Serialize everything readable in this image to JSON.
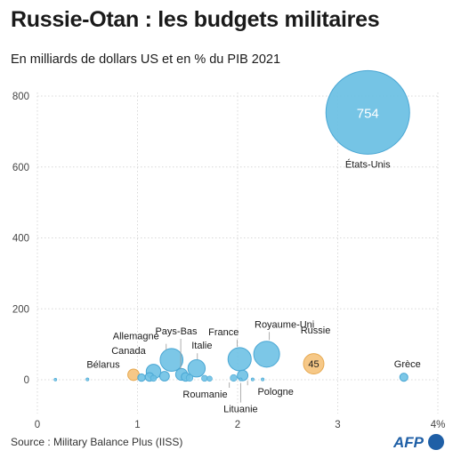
{
  "title": "Russie-Otan : les budgets militaires",
  "subtitle": "En milliards de dollars US et en % du PIB 2021",
  "source": "Source : Military Balance Plus (IISS)",
  "logo_text": "AFP",
  "colors": {
    "nato": "#6ec1e4",
    "nato_stroke": "#4aa7d4",
    "other": "#f5c27a",
    "other_stroke": "#e6a84f",
    "grid": "#d8d8d8"
  },
  "chart_data": {
    "type": "bubble",
    "xlim": [
      0,
      4
    ],
    "ylim": [
      -75,
      850
    ],
    "x_ticks": [
      0,
      1,
      2,
      3,
      4
    ],
    "x_tick_labels": [
      "0",
      "1",
      "2",
      "3",
      "4%"
    ],
    "y_ticks": [
      0,
      200,
      400,
      600,
      800
    ],
    "y_tick_labels": [
      "0",
      "200",
      "400",
      "600",
      "800"
    ],
    "points": [
      {
        "x": 3.3,
        "y": 754,
        "label": "États-Unis",
        "value_label": "754",
        "group": "nato"
      },
      {
        "x": 2.29,
        "y": 72,
        "label": "Royaume-Uni",
        "group": "nato"
      },
      {
        "x": 2.02,
        "y": 58,
        "label": "France",
        "group": "nato"
      },
      {
        "x": 1.34,
        "y": 56,
        "label": "Allemagne",
        "group": "nato"
      },
      {
        "x": 1.59,
        "y": 32,
        "label": "Italie",
        "group": "nato"
      },
      {
        "x": 1.16,
        "y": 23,
        "label": "Canada",
        "group": "nato"
      },
      {
        "x": 2.05,
        "y": 12,
        "label": "Pologne",
        "group": "nato"
      },
      {
        "x": 1.44,
        "y": 15,
        "label": "Pays-Bas",
        "group": "nato"
      },
      {
        "x": 3.66,
        "y": 7,
        "label": "Grèce",
        "group": "nato"
      },
      {
        "x": 2.76,
        "y": 45,
        "label": "Russie",
        "value_label": "45",
        "group": "other"
      },
      {
        "x": 0.96,
        "y": 14,
        "label": "Bélarus",
        "group": "other"
      },
      {
        "x": 1.96,
        "y": 5,
        "label": "Roumanie",
        "group": "nato"
      },
      {
        "x": 2.03,
        "y": 1,
        "label": "Lituanie",
        "group": "nato"
      },
      {
        "x": 1.27,
        "y": 10,
        "group": "nato"
      },
      {
        "x": 1.12,
        "y": 8,
        "group": "nato"
      },
      {
        "x": 1.48,
        "y": 8,
        "group": "nato"
      },
      {
        "x": 1.52,
        "y": 5,
        "group": "nato"
      },
      {
        "x": 1.67,
        "y": 4,
        "group": "nato"
      },
      {
        "x": 1.72,
        "y": 3,
        "group": "nato"
      },
      {
        "x": 1.04,
        "y": 6,
        "group": "nato"
      },
      {
        "x": 1.16,
        "y": 4,
        "group": "nato"
      },
      {
        "x": 0.5,
        "y": 1,
        "group": "nato"
      },
      {
        "x": 0.18,
        "y": 0.3,
        "group": "nato"
      },
      {
        "x": 2.15,
        "y": 1,
        "group": "nato"
      },
      {
        "x": 2.25,
        "y": 1,
        "group": "nato"
      }
    ]
  }
}
